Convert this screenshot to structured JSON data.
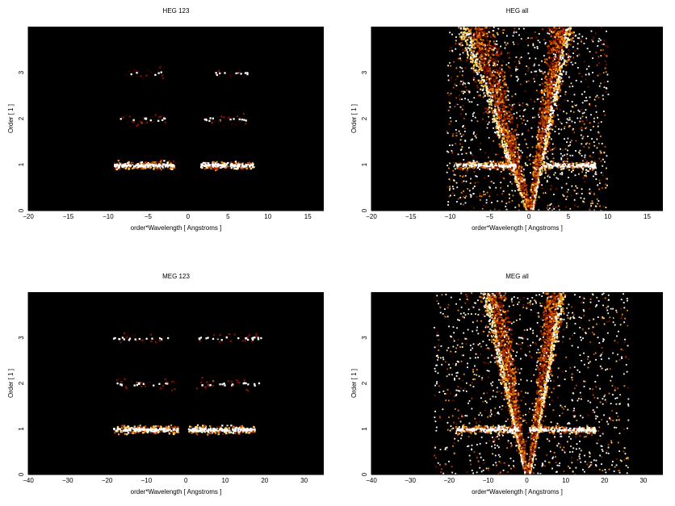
{
  "chart_data": [
    {
      "type": "heatmap",
      "title": "HEG 123",
      "xlabel": "order*Wavelength [ Angstroms ]",
      "ylabel": "Order [ 1 ]",
      "xlim": [
        -20,
        17
      ],
      "ylim": [
        0,
        4
      ],
      "xticks": [
        -20,
        -15,
        -10,
        -5,
        0,
        5,
        10,
        15
      ],
      "yticks": [
        0,
        1,
        2,
        3
      ],
      "background": "#000000",
      "colormap": [
        "#2a0000",
        "#7a1200",
        "#c04000",
        "#f08a10",
        "#ffe070",
        "#ffffff"
      ],
      "features": [
        {
          "kind": "hband",
          "order": 1,
          "x_range": [
            -9.3,
            -1.8
          ],
          "intensity": 1.0
        },
        {
          "kind": "hband",
          "order": 1,
          "x_range": [
            1.5,
            8.3
          ],
          "intensity": 1.0
        },
        {
          "kind": "hband",
          "order": 2,
          "x_range": [
            -8.6,
            -2.3
          ],
          "intensity": 0.35
        },
        {
          "kind": "hband",
          "order": 2,
          "x_range": [
            2.0,
            8.0
          ],
          "intensity": 0.3
        },
        {
          "kind": "hband",
          "order": 3,
          "x_range": [
            -8.0,
            -3.0
          ],
          "intensity": 0.2
        },
        {
          "kind": "hband",
          "order": 3,
          "x_range": [
            3.0,
            7.5
          ],
          "intensity": 0.2
        }
      ]
    },
    {
      "type": "heatmap",
      "title": "HEG all",
      "xlabel": "order*Wavelength [ Angstroms ]",
      "ylabel": "Order [ 1 ]",
      "xlim": [
        -20,
        17
      ],
      "ylim": [
        0,
        4
      ],
      "xticks": [
        -20,
        -15,
        -10,
        -5,
        0,
        5,
        10,
        15
      ],
      "yticks": [
        0,
        1,
        2,
        3
      ],
      "background": "#000000",
      "colormap": [
        "#2a0000",
        "#7a1200",
        "#c04000",
        "#f08a10",
        "#ffe070",
        "#ffffff"
      ],
      "features": [
        {
          "kind": "wedge",
          "side": "left",
          "x_at_top": -8.5,
          "x_at_zero": -0.3,
          "intensity": 0.75
        },
        {
          "kind": "wedge",
          "side": "right",
          "x_at_top": 5.0,
          "x_at_zero": 0.3,
          "intensity": 0.75
        },
        {
          "kind": "hband",
          "order": 1,
          "x_range": [
            -9.3,
            -1.8
          ],
          "intensity": 1.0
        },
        {
          "kind": "hband",
          "order": 1,
          "x_range": [
            1.5,
            8.3
          ],
          "intensity": 1.0
        },
        {
          "kind": "scatter",
          "x_range": [
            -10.5,
            10.0
          ],
          "y_range": [
            0,
            4
          ],
          "intensity": 0.55
        }
      ]
    },
    {
      "type": "heatmap",
      "title": "MEG 123",
      "xlabel": "order*Wavelength [ Angstroms ]",
      "ylabel": "Order [ 1 ]",
      "xlim": [
        -40,
        35
      ],
      "ylim": [
        0,
        4
      ],
      "xticks": [
        -40,
        -30,
        -20,
        -10,
        0,
        10,
        20,
        30
      ],
      "yticks": [
        0,
        1,
        2,
        3
      ],
      "background": "#000000",
      "colormap": [
        "#2a0000",
        "#7a1200",
        "#c04000",
        "#f08a10",
        "#ffe070",
        "#ffffff"
      ],
      "features": [
        {
          "kind": "hband",
          "order": 1,
          "x_range": [
            -18.5,
            -2.0
          ],
          "intensity": 1.0
        },
        {
          "kind": "hband",
          "order": 1,
          "x_range": [
            0.5,
            17.5
          ],
          "intensity": 1.0
        },
        {
          "kind": "hband",
          "order": 2,
          "x_range": [
            -18.0,
            -3.0
          ],
          "intensity": 0.35
        },
        {
          "kind": "hband",
          "order": 2,
          "x_range": [
            2.0,
            18.5
          ],
          "intensity": 0.35
        },
        {
          "kind": "hband",
          "order": 3,
          "x_range": [
            -18.5,
            -4.0
          ],
          "intensity": 0.25
        },
        {
          "kind": "hband",
          "order": 3,
          "x_range": [
            3.0,
            19.5
          ],
          "intensity": 0.25
        }
      ]
    },
    {
      "type": "heatmap",
      "title": "MEG all",
      "xlabel": "order*Wavelength [ Angstroms ]",
      "ylabel": "Order [ 1 ]",
      "xlim": [
        -40,
        35
      ],
      "ylim": [
        0,
        4
      ],
      "xticks": [
        -40,
        -30,
        -20,
        -10,
        0,
        10,
        20,
        30
      ],
      "yticks": [
        0,
        1,
        2,
        3
      ],
      "background": "#000000",
      "colormap": [
        "#2a0000",
        "#7a1200",
        "#c04000",
        "#f08a10",
        "#ffe070",
        "#ffffff"
      ],
      "features": [
        {
          "kind": "wedge",
          "side": "left",
          "x_at_top": -11.0,
          "x_at_zero": -0.5,
          "intensity": 0.75
        },
        {
          "kind": "wedge",
          "side": "right",
          "x_at_top": 9.0,
          "x_at_zero": 0.5,
          "intensity": 0.75
        },
        {
          "kind": "hband",
          "order": 1,
          "x_range": [
            -18.5,
            -2.0
          ],
          "intensity": 1.0
        },
        {
          "kind": "hband",
          "order": 1,
          "x_range": [
            0.5,
            17.5
          ],
          "intensity": 1.0
        },
        {
          "kind": "scatter",
          "x_range": [
            -24.0,
            26.0
          ],
          "y_range": [
            0,
            4
          ],
          "intensity": 0.55
        }
      ]
    }
  ]
}
